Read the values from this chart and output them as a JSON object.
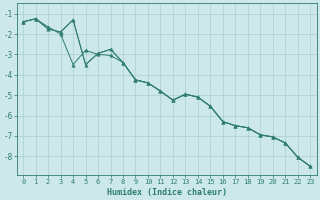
{
  "line1_x": [
    0,
    1,
    2,
    3,
    4,
    5,
    6,
    7,
    8,
    9,
    10,
    11,
    12,
    13,
    14,
    15,
    16,
    17,
    18,
    19,
    20,
    21,
    22,
    23
  ],
  "line1_y": [
    -1.4,
    -1.25,
    -1.65,
    -2.0,
    -3.5,
    -2.8,
    -3.0,
    -3.05,
    -3.4,
    -4.25,
    -4.4,
    -4.8,
    -5.25,
    -4.95,
    -5.1,
    -5.55,
    -6.3,
    -6.5,
    -6.6,
    -6.95,
    -7.05,
    -7.35,
    -8.05,
    -8.5
  ],
  "line2_x": [
    0,
    1,
    2,
    3,
    4,
    5,
    6,
    7,
    8,
    9,
    10,
    11,
    12,
    13,
    14,
    15,
    16,
    17,
    18,
    19,
    20,
    21,
    22,
    23
  ],
  "line2_y": [
    -1.4,
    -1.25,
    -1.75,
    -1.9,
    -1.3,
    -3.5,
    -2.95,
    -2.75,
    -3.4,
    -4.25,
    -4.4,
    -4.8,
    -5.25,
    -4.95,
    -5.1,
    -5.55,
    -6.3,
    -6.5,
    -6.6,
    -6.95,
    -7.05,
    -7.35,
    -8.05,
    -8.5
  ],
  "line3_x": [
    0,
    1,
    2,
    3,
    4,
    5,
    6,
    7,
    8,
    9,
    10,
    11,
    12,
    13,
    14,
    15,
    16,
    17,
    18,
    19,
    20,
    21,
    22,
    23
  ],
  "line3_y": [
    -1.4,
    -1.25,
    -1.75,
    -1.9,
    -1.3,
    -3.5,
    -2.95,
    -2.75,
    -3.4,
    -4.25,
    -4.4,
    -4.8,
    -5.25,
    -4.95,
    -5.1,
    -5.55,
    -6.3,
    -6.5,
    -6.6,
    -6.95,
    -7.05,
    -7.35,
    -8.05,
    -8.5
  ],
  "color": "#2e7d6e",
  "bg_color": "#cce8e8",
  "grid_color": "#aacfcf",
  "xlabel": "Humidex (Indice chaleur)",
  "xlim_min": -0.5,
  "xlim_max": 23.5,
  "ylim_min": -8.9,
  "ylim_max": -0.5,
  "yticks": [
    -8,
    -7,
    -6,
    -5,
    -4,
    -3,
    -2,
    -1
  ],
  "xticks": [
    0,
    1,
    2,
    3,
    4,
    5,
    6,
    7,
    8,
    9,
    10,
    11,
    12,
    13,
    14,
    15,
    16,
    17,
    18,
    19,
    20,
    21,
    22,
    23
  ],
  "marker": "^",
  "markersize": 2.5,
  "linewidth": 0.7,
  "tick_fontsize": 5.0,
  "xlabel_fontsize": 6.0
}
